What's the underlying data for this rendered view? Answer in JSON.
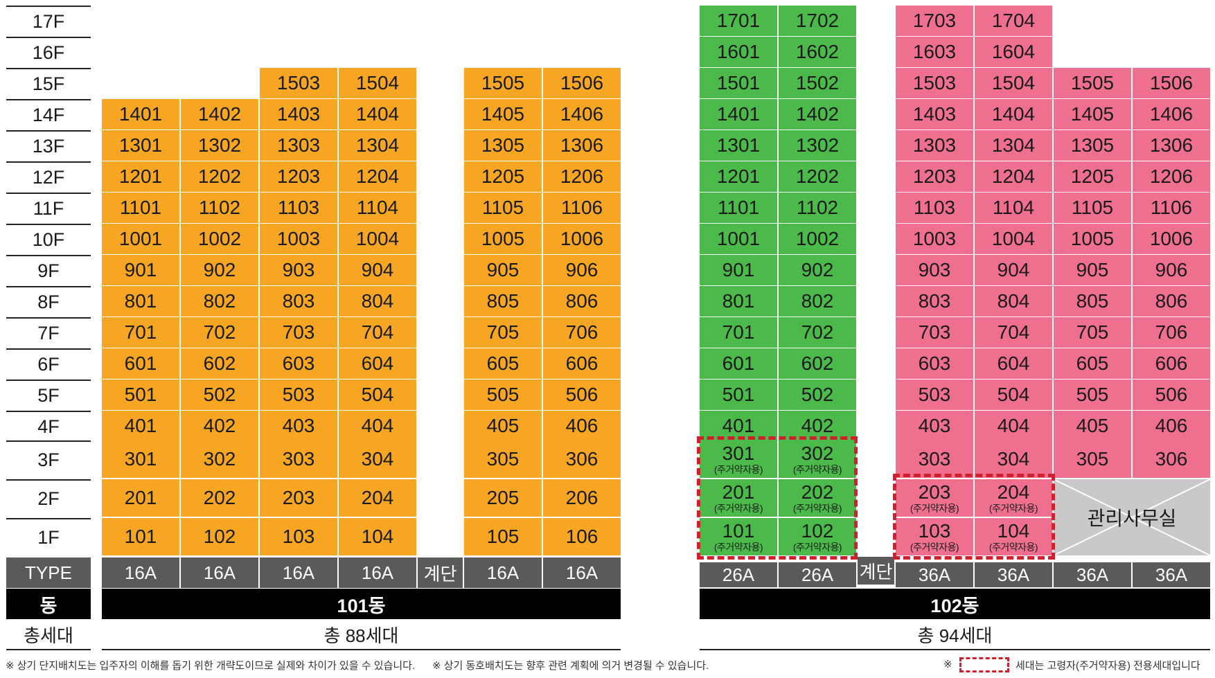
{
  "floors": [
    "17F",
    "16F",
    "15F",
    "14F",
    "13F",
    "12F",
    "11F",
    "10F",
    "9F",
    "8F",
    "7F",
    "6F",
    "5F",
    "4F",
    "3F",
    "2F",
    "1F"
  ],
  "row_labels": {
    "type": "TYPE",
    "dong": "동",
    "total": "총세대"
  },
  "building_101": {
    "name": "101동",
    "total": "총 88세대",
    "types": [
      "16A",
      "16A",
      "16A",
      "16A",
      "계단",
      "16A",
      "16A"
    ],
    "columns": [
      {
        "units": [
          "101",
          "201",
          "301",
          "401",
          "501",
          "601",
          "701",
          "801",
          "901",
          "1001",
          "1101",
          "1201",
          "1301",
          "1401"
        ]
      },
      {
        "units": [
          "102",
          "202",
          "302",
          "402",
          "502",
          "602",
          "702",
          "802",
          "902",
          "1002",
          "1102",
          "1202",
          "1302",
          "1402"
        ]
      },
      {
        "units": [
          "103",
          "203",
          "303",
          "403",
          "503",
          "603",
          "703",
          "803",
          "903",
          "1003",
          "1103",
          "1203",
          "1303",
          "1403",
          "1503"
        ]
      },
      {
        "units": [
          "104",
          "204",
          "304",
          "404",
          "504",
          "604",
          "704",
          "804",
          "904",
          "1004",
          "1104",
          "1204",
          "1304",
          "1404",
          "1504"
        ]
      },
      {
        "units": []
      },
      {
        "units": [
          "105",
          "205",
          "305",
          "405",
          "505",
          "605",
          "705",
          "805",
          "905",
          "1005",
          "1105",
          "1205",
          "1305",
          "1405",
          "1505"
        ]
      },
      {
        "units": [
          "106",
          "206",
          "306",
          "406",
          "506",
          "606",
          "706",
          "806",
          "906",
          "1006",
          "1106",
          "1206",
          "1306",
          "1406",
          "1506"
        ]
      }
    ]
  },
  "building_102": {
    "name": "102동",
    "total": "총 94세대",
    "types": [
      "26A",
      "26A",
      "계단",
      "36A",
      "36A",
      "36A",
      "36A"
    ],
    "columns": [
      {
        "color": "green",
        "units": [
          "101",
          "201",
          "301",
          "401",
          "501",
          "601",
          "701",
          "801",
          "901",
          "1001",
          "1101",
          "1201",
          "1301",
          "1401",
          "1501",
          "1601",
          "1701"
        ]
      },
      {
        "color": "green",
        "units": [
          "102",
          "202",
          "302",
          "402",
          "502",
          "602",
          "702",
          "802",
          "902",
          "1002",
          "1102",
          "1202",
          "1302",
          "1402",
          "1502",
          "1602",
          "1702"
        ]
      },
      {
        "color": "none",
        "units": []
      },
      {
        "color": "pink",
        "units": [
          "103",
          "203",
          "303",
          "403",
          "503",
          "603",
          "703",
          "803",
          "903",
          "1003",
          "1103",
          "1203",
          "1303",
          "1403",
          "1503",
          "1603",
          "1703"
        ]
      },
      {
        "color": "pink",
        "units": [
          "104",
          "204",
          "304",
          "404",
          "504",
          "604",
          "704",
          "804",
          "904",
          "1004",
          "1104",
          "1204",
          "1304",
          "1404",
          "1504",
          "1604",
          "1704"
        ]
      },
      {
        "color": "pink",
        "units": [
          "305",
          "405",
          "505",
          "605",
          "705",
          "805",
          "905",
          "1005",
          "1105",
          "1205",
          "1305",
          "1405",
          "1505"
        ]
      },
      {
        "color": "pink",
        "units": [
          "306",
          "406",
          "506",
          "606",
          "706",
          "806",
          "906",
          "1006",
          "1106",
          "1206",
          "1306",
          "1406",
          "1506"
        ]
      }
    ],
    "office_label": "관리사무실"
  },
  "elderly_units": {
    "sub_label": "(주거약자용)",
    "units_102": [
      "101",
      "201",
      "301",
      "102",
      "202",
      "302",
      "103",
      "203",
      "104",
      "204"
    ]
  },
  "footnotes": {
    "note1": "※ 상기 단지배치도는 입주자의 이해를 돕기 위한 개략도이므로 실제와 차이가 있을 수 있습니다.",
    "note2": "※ 상기 동호배치도는 향후 관련 계획에 의거 변경될 수 있습니다.",
    "legend_prefix": "※",
    "legend_text": "세대는 고령자(주거약자용) 전용세대입니다"
  },
  "colors": {
    "building_101": "#f6a623",
    "green_26A": "#4cba4a",
    "pink_36A": "#ef6f8e",
    "type_bar": "#5a5a5a",
    "dong_bar": "#000000",
    "dashed_outline": "#d0202e",
    "office": "#c9c9c9"
  }
}
